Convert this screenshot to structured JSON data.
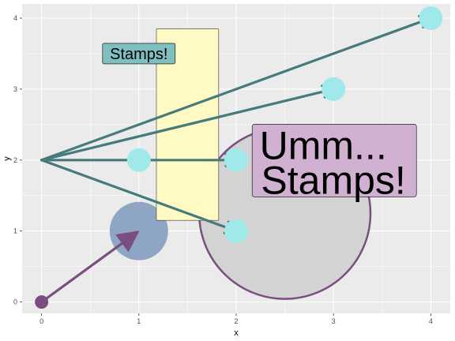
{
  "chart_data": {
    "type": "scatter",
    "xlabel": "x",
    "ylabel": "y",
    "xlim": [
      -0.2,
      4.2
    ],
    "ylim": [
      -0.16,
      4.2
    ],
    "x_ticks": [
      0,
      1,
      2,
      3,
      4
    ],
    "y_ticks": [
      0,
      1,
      2,
      3,
      4
    ],
    "grid": true,
    "colors": {
      "panel": "#ebebeb",
      "grid": "#ffffff",
      "arrow_teal": "#467a7b",
      "arrow_purple": "#7a4f7f",
      "point_cyan": "#9fe9ea",
      "point_purple": "#7a4f7f",
      "blue_circle": "#8fa5c4",
      "gray_circle_fill": "#d3d3d3",
      "gray_circle_edge": "#7a4f7f",
      "rect_fill": "#fff9c4",
      "label_teal": "#7fbfbf",
      "label_pink": "#d0b1d1"
    },
    "points": [
      {
        "x": 1,
        "y": 2,
        "kind": "cyan"
      },
      {
        "x": 2,
        "y": 1,
        "kind": "cyan"
      },
      {
        "x": 2,
        "y": 2,
        "kind": "cyan"
      },
      {
        "x": 3,
        "y": 3,
        "kind": "cyan"
      },
      {
        "x": 4,
        "y": 4,
        "kind": "cyan"
      },
      {
        "x": 0,
        "y": 0,
        "kind": "purple"
      }
    ],
    "arrows": [
      {
        "from": [
          0,
          2
        ],
        "to": [
          4,
          4
        ],
        "color": "teal"
      },
      {
        "from": [
          0,
          2
        ],
        "to": [
          3,
          3
        ],
        "color": "teal"
      },
      {
        "from": [
          0,
          2
        ],
        "to": [
          2,
          2
        ],
        "color": "teal"
      },
      {
        "from": [
          0,
          2
        ],
        "to": [
          2,
          1
        ],
        "color": "teal"
      },
      {
        "from": [
          0,
          0
        ],
        "to": [
          1,
          1
        ],
        "color": "purple"
      }
    ],
    "circles": [
      {
        "cx": 1,
        "cy": 1,
        "r": 0.3,
        "style": "blue"
      },
      {
        "cx": 2.5,
        "cy": 1.25,
        "r": 0.88,
        "style": "gray"
      }
    ],
    "rect": {
      "xmin": 1.18,
      "xmax": 1.82,
      "ymin": 1.15,
      "ymax": 3.85
    },
    "labels": [
      {
        "text": "Stamps!",
        "x": 1.0,
        "y": 3.5,
        "style": "small"
      },
      {
        "text_line1": "Umm...",
        "text_line2": " Stamps!",
        "x": 3.0,
        "y": 1.75,
        "style": "big"
      }
    ]
  }
}
